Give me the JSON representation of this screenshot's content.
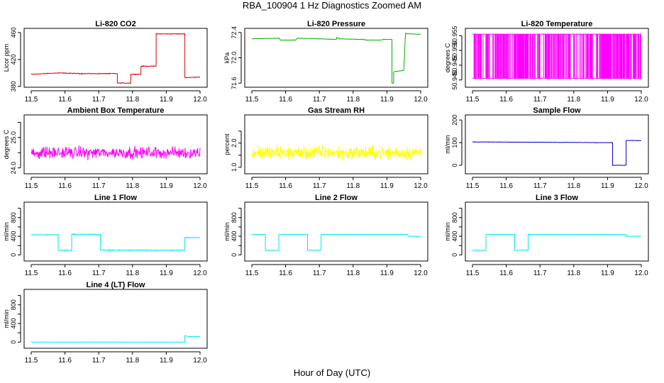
{
  "page": {
    "title": "RBA_100904  1 Hz Diagnostics Zoomed AM",
    "xlabel": "Hour of Day (UTC)"
  },
  "chart_data": [
    {
      "type": "line",
      "title": "Li-820 CO2",
      "ylabel": "Licor ppm",
      "color": "#dd0000",
      "xlim": [
        11.5,
        12.0
      ],
      "ylim": [
        383,
        462
      ],
      "yticks": [
        380,
        420,
        460
      ],
      "yticklabels": [
        "380",
        "420",
        "460"
      ],
      "xticks": [
        11.5,
        11.6,
        11.7,
        11.8,
        11.9,
        12.0
      ],
      "xticklabels": [
        "11.5",
        "11.6",
        "11.7",
        "11.8",
        "11.9",
        "12.0"
      ],
      "noise": 0.8,
      "points": [
        [
          11.5,
          398
        ],
        [
          11.58,
          400
        ],
        [
          11.65,
          399
        ],
        [
          11.755,
          399
        ],
        [
          11.755,
          385
        ],
        [
          11.795,
          385
        ],
        [
          11.795,
          398
        ],
        [
          11.825,
          398
        ],
        [
          11.825,
          410
        ],
        [
          11.87,
          410
        ],
        [
          11.87,
          458
        ],
        [
          11.955,
          458
        ],
        [
          11.955,
          393
        ],
        [
          12.0,
          394
        ]
      ]
    },
    {
      "type": "line",
      "title": "Li-820 Pressure",
      "ylabel": "kPa",
      "color": "#00b000",
      "xlim": [
        11.5,
        12.0
      ],
      "ylim": [
        71.58,
        72.42
      ],
      "yticks": [
        71.6,
        72.0,
        72.4
      ],
      "yticklabels": [
        "71.6",
        "72.0",
        "72.4"
      ],
      "xticks": [
        11.5,
        11.6,
        11.7,
        11.8,
        11.9,
        12.0
      ],
      "xticklabels": [
        "11.5",
        "11.6",
        "11.7",
        "11.8",
        "11.9",
        "12.0"
      ],
      "noise": 0.004,
      "points": [
        [
          11.5,
          72.3
        ],
        [
          11.58,
          72.31
        ],
        [
          11.585,
          72.28
        ],
        [
          11.63,
          72.28
        ],
        [
          11.635,
          72.31
        ],
        [
          11.7,
          72.3
        ],
        [
          11.75,
          72.29
        ],
        [
          11.752,
          72.32
        ],
        [
          11.76,
          72.3
        ],
        [
          11.83,
          72.29
        ],
        [
          11.84,
          72.28
        ],
        [
          11.88,
          72.28
        ],
        [
          11.89,
          72.29
        ],
        [
          11.915,
          72.29
        ],
        [
          11.915,
          71.6
        ],
        [
          11.92,
          71.6
        ],
        [
          11.92,
          71.78
        ],
        [
          11.95,
          71.8
        ],
        [
          11.955,
          72.39
        ],
        [
          11.96,
          72.38
        ],
        [
          12.0,
          72.37
        ]
      ]
    },
    {
      "type": "spikes",
      "title": "Li-820 Temperature",
      "ylabel": "degrees C",
      "color": "#ff00ff",
      "xlim": [
        11.5,
        12.0
      ],
      "ylim": [
        50.9385,
        50.9565
      ],
      "low": 50.9405,
      "high": 50.9555,
      "yticks": [
        50.94,
        50.945,
        50.95,
        50.955
      ],
      "yticklabels": [
        "50.940",
        "50.945",
        "50.950",
        "50.955"
      ],
      "xticks": [
        11.5,
        11.6,
        11.7,
        11.8,
        11.9,
        12.0
      ],
      "xticklabels": [
        "11.5",
        "11.6",
        "11.7",
        "11.8",
        "11.9",
        "12.0"
      ],
      "points": []
    },
    {
      "type": "line",
      "title": "Ambient Box Temperature",
      "ylabel": "degrees C",
      "color": "#ff00ff",
      "xlim": [
        11.5,
        12.0
      ],
      "ylim": [
        23.9,
        25.65
      ],
      "yticks": [
        24.0,
        25.0
      ],
      "yticklabels": [
        "24.0",
        "25.0"
      ],
      "minor_yticks": [
        24.5,
        25.5
      ],
      "xticks": [
        11.5,
        11.6,
        11.7,
        11.8,
        11.9,
        12.0
      ],
      "xticklabels": [
        "11.5",
        "11.6",
        "11.7",
        "11.8",
        "11.9",
        "12.0"
      ],
      "noise": 0.28,
      "points": [
        [
          11.5,
          24.5
        ],
        [
          12.0,
          24.5
        ]
      ]
    },
    {
      "type": "line",
      "title": "Gas Stream RH",
      "ylabel": "percent",
      "color": "#ffff00",
      "xlim": [
        11.5,
        12.0
      ],
      "ylim": [
        0.85,
        3.05
      ],
      "yticks": [
        1.0,
        2.0
      ],
      "yticklabels": [
        "1.0",
        "2.0"
      ],
      "minor_yticks": [
        1.5,
        2.5
      ],
      "xticks": [
        11.5,
        11.6,
        11.7,
        11.8,
        11.9,
        12.0
      ],
      "xticklabels": [
        "11.5",
        "11.6",
        "11.7",
        "11.8",
        "11.9",
        "12.0"
      ],
      "noise": 0.42,
      "points": [
        [
          11.5,
          1.6
        ],
        [
          12.0,
          1.6
        ]
      ]
    },
    {
      "type": "line",
      "title": "Sample Flow",
      "ylabel": "ml/min",
      "color": "#0000cc",
      "xlim": [
        11.5,
        12.0
      ],
      "ylim": [
        -25,
        210
      ],
      "yticks": [
        0,
        100,
        200
      ],
      "yticklabels": [
        "0",
        "100",
        "200"
      ],
      "xticks": [
        11.5,
        11.6,
        11.7,
        11.8,
        11.9,
        12.0
      ],
      "xticklabels": [
        "11.5",
        "11.6",
        "11.7",
        "11.8",
        "11.9",
        "12.0"
      ],
      "noise": 1.2,
      "points": [
        [
          11.5,
          103
        ],
        [
          11.8,
          101
        ],
        [
          11.915,
          100
        ],
        [
          11.915,
          0
        ],
        [
          11.955,
          0
        ],
        [
          11.955,
          110
        ],
        [
          12.0,
          109
        ]
      ]
    },
    {
      "type": "line",
      "title": "Line 1 Flow",
      "ylabel": "ml/min",
      "color": "#00e5ee",
      "xlim": [
        11.5,
        12.0
      ],
      "ylim": [
        -70,
        1070
      ],
      "yticks": [
        0,
        400,
        800
      ],
      "yticklabels": [
        "0",
        "400",
        "800"
      ],
      "minor_yticks": [
        200,
        600,
        1000
      ],
      "xticks": [
        11.5,
        11.6,
        11.7,
        11.8,
        11.9,
        12.0
      ],
      "xticklabels": [
        "11.5",
        "11.6",
        "11.7",
        "11.8",
        "11.9",
        "12.0"
      ],
      "noise": 14,
      "points": [
        [
          11.5,
          430
        ],
        [
          11.58,
          430
        ],
        [
          11.58,
          100
        ],
        [
          11.62,
          100
        ],
        [
          11.62,
          440
        ],
        [
          11.705,
          440
        ],
        [
          11.705,
          100
        ],
        [
          11.955,
          100
        ],
        [
          11.955,
          370
        ],
        [
          12.0,
          370
        ]
      ]
    },
    {
      "type": "line",
      "title": "Line 2 Flow",
      "ylabel": "ml/min",
      "color": "#00e5ee",
      "xlim": [
        11.5,
        12.0
      ],
      "ylim": [
        -70,
        1070
      ],
      "yticks": [
        0,
        400,
        800
      ],
      "yticklabels": [
        "0",
        "400",
        "800"
      ],
      "minor_yticks": [
        200,
        600,
        1000
      ],
      "xticks": [
        11.5,
        11.6,
        11.7,
        11.8,
        11.9,
        12.0
      ],
      "xticklabels": [
        "11.5",
        "11.6",
        "11.7",
        "11.8",
        "11.9",
        "12.0"
      ],
      "noise": 5,
      "points": [
        [
          11.5,
          440
        ],
        [
          11.54,
          440
        ],
        [
          11.54,
          100
        ],
        [
          11.58,
          100
        ],
        [
          11.58,
          440
        ],
        [
          11.665,
          440
        ],
        [
          11.665,
          100
        ],
        [
          11.705,
          100
        ],
        [
          11.705,
          440
        ],
        [
          11.96,
          440
        ],
        [
          11.965,
          400
        ],
        [
          12.0,
          395
        ]
      ]
    },
    {
      "type": "line",
      "title": "Line 3 Flow",
      "ylabel": "ml/min",
      "color": "#00e5ee",
      "xlim": [
        11.5,
        12.0
      ],
      "ylim": [
        -70,
        1070
      ],
      "yticks": [
        0,
        400,
        800
      ],
      "yticklabels": [
        "0",
        "400",
        "800"
      ],
      "minor_yticks": [
        200,
        600,
        1000
      ],
      "xticks": [
        11.5,
        11.6,
        11.7,
        11.8,
        11.9,
        12.0
      ],
      "xticklabels": [
        "11.5",
        "11.6",
        "11.7",
        "11.8",
        "11.9",
        "12.0"
      ],
      "noise": 5,
      "points": [
        [
          11.5,
          100
        ],
        [
          11.54,
          100
        ],
        [
          11.54,
          440
        ],
        [
          11.625,
          440
        ],
        [
          11.625,
          100
        ],
        [
          11.665,
          100
        ],
        [
          11.665,
          440
        ],
        [
          11.955,
          440
        ],
        [
          11.955,
          400
        ],
        [
          12.0,
          400
        ]
      ]
    },
    {
      "type": "line",
      "title": "Line 4 (LT) Flow",
      "ylabel": "ml/min",
      "color": "#00e5ee",
      "xlim": [
        11.5,
        12.0
      ],
      "ylim": [
        -70,
        1070
      ],
      "yticks": [
        0,
        400,
        800
      ],
      "yticklabels": [
        "0",
        "400",
        "800"
      ],
      "minor_yticks": [
        200,
        600,
        1000
      ],
      "xticks": [
        11.5,
        11.6,
        11.7,
        11.8,
        11.9,
        12.0
      ],
      "xticklabels": [
        "11.5",
        "11.6",
        "11.7",
        "11.8",
        "11.9",
        "12.0"
      ],
      "noise": 2,
      "points": [
        [
          11.5,
          0
        ],
        [
          11.955,
          0
        ],
        [
          11.955,
          140
        ],
        [
          11.965,
          120
        ],
        [
          12.0,
          120
        ]
      ]
    }
  ]
}
